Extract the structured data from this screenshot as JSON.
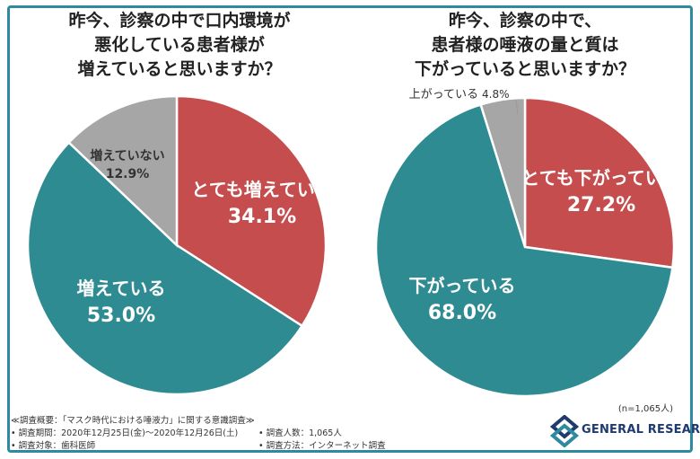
{
  "colors": {
    "red": "#c54d4d",
    "teal": "#2e8b91",
    "gray": "#a6a6a6",
    "frame": "#2f8aa0",
    "brand": "#1e3a6e"
  },
  "left": {
    "title_lines": [
      "昨今、診察の中で口内環境が",
      "悪化している患者様が",
      "増えていると思いますか？"
    ]
  },
  "right": {
    "title_lines": [
      "昨今、診察の中で、",
      "患者様の唾液の量と質は",
      "下がっていると思いますか？"
    ]
  },
  "chart_data": [
    {
      "type": "pie",
      "title": "昨今、診察の中で口内環境が悪化している患者様が増えていると思いますか？",
      "slices": [
        {
          "label": "とても増えている",
          "value": 34.1,
          "display": "34.1%",
          "color": "#c54d4d"
        },
        {
          "label": "増えている",
          "value": 53.0,
          "display": "53.0%",
          "color": "#2e8b91"
        },
        {
          "label": "増えていない",
          "value": 12.9,
          "display": "12.9%",
          "color": "#a6a6a6"
        }
      ]
    },
    {
      "type": "pie",
      "title": "昨今、診察の中で、患者様の唾液の量と質は下がっていると思いますか？",
      "slices": [
        {
          "label": "とても下がっている",
          "value": 27.2,
          "display": "27.2%",
          "color": "#c54d4d"
        },
        {
          "label": "下がっている",
          "value": 68.0,
          "display": "68.0%",
          "color": "#2e8b91"
        },
        {
          "label": "上がっている",
          "value": 4.8,
          "display": "4.8%",
          "color": "#a6a6a6"
        }
      ]
    }
  ],
  "n_note": "(n=1,065人)",
  "footer": {
    "line1": "≪調査概要：「マスク時代における唾液力」に関する意識調査≫",
    "line2": "• 調査期間：2020年12月25日(金)〜2020年12月26日(土)",
    "line3": "• 調査対象：歯科医師",
    "line4": "• 調査人数：1,065人",
    "line5": "• 調査方法：インターネット調査"
  },
  "brand": {
    "name": "GENERAL RESEARCH"
  }
}
